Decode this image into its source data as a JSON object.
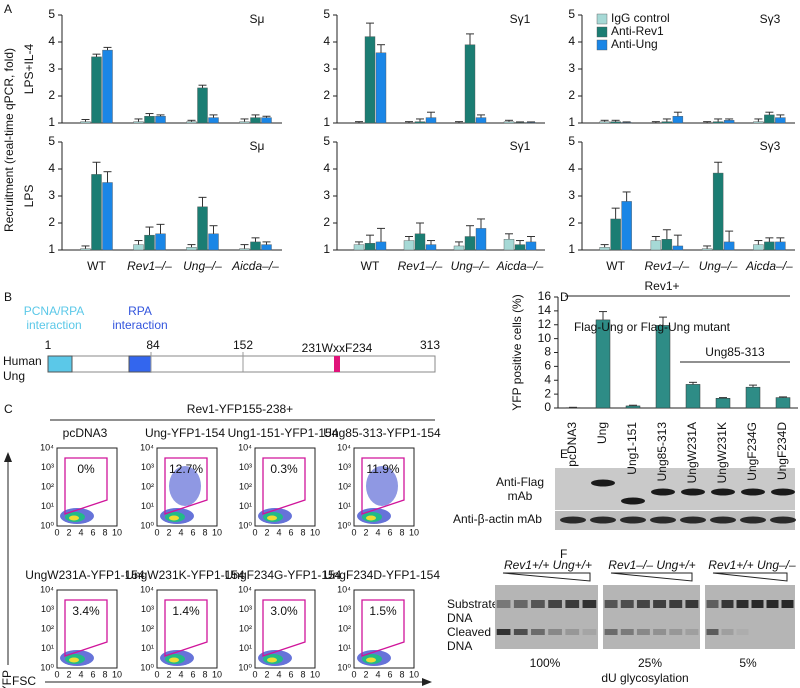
{
  "panel_labels": [
    "A",
    "B",
    "C",
    "D",
    "E",
    "F"
  ],
  "panel_a": {
    "ylabel": "Recruitment (real-time qPCR, fold)",
    "row_labels": [
      "LPS+IL-4",
      "LPS"
    ]
  },
  "chart_data": [
    {
      "type": "bar",
      "title": "Sμ",
      "ylim": [
        1,
        5
      ],
      "yticks": [
        1,
        2,
        3,
        4,
        5
      ],
      "series": [
        {
          "color": "#a6d9d6",
          "values": [
            1.05,
            1.05,
            1.05,
            1.05
          ],
          "errors": [
            0.08,
            0.1,
            0.05,
            0.1
          ]
        },
        {
          "color": "#1b7d73",
          "values": [
            3.45,
            1.25,
            2.3,
            1.2
          ],
          "errors": [
            0.1,
            0.1,
            0.1,
            0.1
          ]
        },
        {
          "color": "#1a86e6",
          "values": [
            3.7,
            1.25,
            1.2,
            1.2
          ],
          "errors": [
            0.1,
            0.05,
            0.1,
            0.05
          ]
        }
      ]
    },
    {
      "type": "bar",
      "title": "Sγ1",
      "ylim": [
        1,
        5
      ],
      "yticks": [
        1,
        2,
        3,
        4,
        5
      ],
      "series": [
        {
          "color": "#a6d9d6",
          "values": [
            1.0,
            1.0,
            1.0,
            1.05
          ],
          "errors": [
            0.05,
            0.05,
            0.05,
            0.05
          ]
        },
        {
          "color": "#1b7d73",
          "values": [
            4.2,
            1.05,
            3.9,
            1.02
          ],
          "errors": [
            0.5,
            0.1,
            0.4,
            0.02
          ]
        },
        {
          "color": "#1a86e6",
          "values": [
            3.6,
            1.2,
            1.2,
            1.02
          ],
          "errors": [
            0.3,
            0.2,
            0.1,
            0.02
          ]
        }
      ]
    },
    {
      "type": "bar",
      "title": "Sγ3",
      "ylim": [
        1,
        5
      ],
      "yticks": [
        1,
        2,
        3,
        4,
        5
      ],
      "legend": "upper left",
      "series": [
        {
          "name": "IgG control",
          "color": "#a6d9d6",
          "values": [
            1.05,
            1.0,
            1.0,
            1.05
          ],
          "errors": [
            0.05,
            0.05,
            0.05,
            0.1
          ]
        },
        {
          "name": "Anti-Rev1",
          "color": "#1b7d73",
          "values": [
            1.05,
            1.05,
            1.05,
            1.3
          ],
          "errors": [
            0.05,
            0.1,
            0.1,
            0.1
          ]
        },
        {
          "name": "Anti-Ung",
          "color": "#1a86e6",
          "values": [
            1.02,
            1.25,
            1.1,
            1.2
          ],
          "errors": [
            0.02,
            0.15,
            0.05,
            0.1
          ]
        }
      ]
    },
    {
      "type": "bar",
      "title": "Sμ",
      "ylim": [
        1,
        5
      ],
      "yticks": [
        1,
        2,
        3,
        4,
        5
      ],
      "categories": [
        "WT",
        "Rev1–/–",
        "Ung–/–",
        "Aicda–/–"
      ],
      "series": [
        {
          "color": "#a6d9d6",
          "values": [
            1.05,
            1.2,
            1.1,
            1.05
          ],
          "errors": [
            0.1,
            0.15,
            0.1,
            0.15
          ]
        },
        {
          "color": "#1b7d73",
          "values": [
            3.8,
            1.55,
            2.6,
            1.3
          ],
          "errors": [
            0.45,
            0.3,
            0.35,
            0.15
          ]
        },
        {
          "color": "#1a86e6",
          "values": [
            3.5,
            1.6,
            1.6,
            1.2
          ],
          "errors": [
            0.4,
            0.35,
            0.3,
            0.1
          ]
        }
      ]
    },
    {
      "type": "bar",
      "title": "Sγ1",
      "ylim": [
        1,
        5
      ],
      "yticks": [
        1,
        2,
        3,
        4,
        5
      ],
      "categories": [
        "WT",
        "Rev1–/–",
        "Ung–/–",
        "Aicda–/–"
      ],
      "series": [
        {
          "color": "#a6d9d6",
          "values": [
            1.2,
            1.35,
            1.15,
            1.4
          ],
          "errors": [
            0.1,
            0.15,
            0.15,
            0.2
          ]
        },
        {
          "color": "#1b7d73",
          "values": [
            1.25,
            1.6,
            1.5,
            1.2
          ],
          "errors": [
            0.3,
            0.4,
            0.4,
            0.15
          ]
        },
        {
          "color": "#1a86e6",
          "values": [
            1.3,
            1.2,
            1.8,
            1.3
          ],
          "errors": [
            0.5,
            0.15,
            0.35,
            0.2
          ]
        }
      ]
    },
    {
      "type": "bar",
      "title": "Sγ3",
      "ylim": [
        1,
        5
      ],
      "yticks": [
        1,
        2,
        3,
        4,
        5
      ],
      "categories": [
        "WT",
        "Rev1–/–",
        "Ung–/–",
        "Aicda–/–"
      ],
      "series": [
        {
          "color": "#a6d9d6",
          "values": [
            1.1,
            1.35,
            1.05,
            1.2
          ],
          "errors": [
            0.1,
            0.15,
            0.1,
            0.15
          ]
        },
        {
          "color": "#1b7d73",
          "values": [
            2.15,
            1.4,
            3.85,
            1.3
          ],
          "errors": [
            0.4,
            0.35,
            0.4,
            0.15
          ]
        },
        {
          "color": "#1a86e6",
          "values": [
            2.8,
            1.15,
            1.3,
            1.3
          ],
          "errors": [
            0.35,
            0.4,
            0.4,
            0.15
          ]
        }
      ]
    },
    {
      "type": "bar",
      "ylabel": "YFP positive cells (%)",
      "categories": [
        "pcDNA3",
        "Ung",
        "Ung1-151",
        "Ung85-313",
        "UngW231A",
        "UngW231K",
        "UngF234G",
        "UngF234D"
      ],
      "values": [
        0.05,
        12.7,
        0.3,
        11.9,
        3.4,
        1.4,
        3.0,
        1.5
      ],
      "errors": [
        0.05,
        1.2,
        0.1,
        1.2,
        0.3,
        0.1,
        0.3,
        0.1
      ],
      "color": "#2e8c86",
      "ylim": [
        0,
        16
      ],
      "yticks": [
        0,
        2,
        4,
        6,
        8,
        10,
        12,
        14,
        16
      ],
      "annotations": [
        "Rev1+",
        "Flag-Ung  or  Flag-Ung  mutant",
        "Ung85-313"
      ]
    }
  ],
  "panel_b": {
    "pcna_rpa": [
      "PCNA/RPA",
      "interaction"
    ],
    "rpa": [
      "RPA",
      "interaction"
    ],
    "positions": [
      "1",
      "84",
      "152",
      "313"
    ],
    "motif": "231WxxF234",
    "protein": [
      "Human",
      "Ung"
    ]
  },
  "panel_c": {
    "header": "Rev1-YFP155-238+",
    "ylabel": "YFP",
    "xlabel": "FSC",
    "yticks": [
      "10⁰",
      "10¹",
      "10²",
      "10³",
      "10⁴"
    ],
    "xticks": [
      0,
      2,
      4,
      6,
      8,
      10
    ],
    "plots": [
      {
        "title": "pcDNA3",
        "gate": "0%"
      },
      {
        "title": "Ung-YFP1-154",
        "gate": "12.7%"
      },
      {
        "title": "Ung1-151-YFP1-154",
        "gate": "0.3%"
      },
      {
        "title": "Ung85-313-YFP1-154",
        "gate": "11.9%"
      },
      {
        "title": "UngW231A-YFP1-154",
        "gate": "3.4%"
      },
      {
        "title": "UngW231K-YFP1-154",
        "gate": "1.4%"
      },
      {
        "title": "UngF234G-YFP1-154",
        "gate": "3.0%"
      },
      {
        "title": "UngF234D-YFP1-154",
        "gate": "1.5%"
      }
    ]
  },
  "panel_e": {
    "flag": [
      "Anti-Flag",
      "mAb"
    ],
    "actin": "Anti-β-actin mAb"
  },
  "panel_f": {
    "lanes": [
      "Rev1+/+ Ung+/+",
      "Rev1–/– Ung+/+",
      "Rev1+/+ Ung–/–"
    ],
    "substrate": [
      "Substrate",
      "DNA"
    ],
    "cleaved": [
      "Cleaved",
      "DNA"
    ],
    "activity": [
      "100%",
      "25%",
      "5%"
    ],
    "xlabel": "dU glycosylation"
  }
}
